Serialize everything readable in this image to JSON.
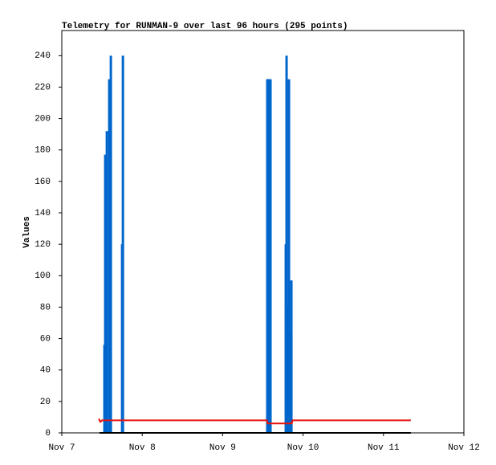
{
  "chart_data": {
    "type": "combo",
    "title": "Telemetry for RUNMAN-9 over last 96 hours (295 points)",
    "y_label": "Values",
    "xlim": [
      7,
      12
    ],
    "xticks": [
      {
        "value": 7,
        "label": "Nov 7"
      },
      {
        "value": 8,
        "label": "Nov 8"
      },
      {
        "value": 9,
        "label": "Nov 9"
      },
      {
        "value": 10,
        "label": "Nov 10"
      },
      {
        "value": 11,
        "label": "Nov 11"
      },
      {
        "value": 12,
        "label": "Nov 12"
      }
    ],
    "ylim": [
      0,
      256
    ],
    "yticks": [
      0,
      20,
      40,
      60,
      80,
      100,
      120,
      140,
      160,
      180,
      200,
      220,
      240
    ],
    "series": [
      {
        "type": "bar",
        "color": "#0066cc",
        "x": [
          7.53,
          7.54,
          7.56,
          7.59,
          7.61,
          7.75,
          7.76,
          9.555,
          9.565,
          9.575,
          9.585,
          9.595,
          9.785,
          9.795,
          9.805,
          9.825,
          9.835,
          9.855
        ],
        "values": [
          56,
          177,
          192,
          225,
          240,
          120,
          240,
          225,
          225,
          225,
          225,
          225,
          120,
          240,
          80,
          225,
          64,
          97
        ]
      },
      {
        "type": "line",
        "color": "#e8120c",
        "x": [
          7.46,
          7.48,
          7.5,
          9.55,
          9.56,
          9.86,
          9.87,
          11.34
        ],
        "values": [
          9,
          7,
          8,
          8,
          6,
          6,
          8,
          8
        ]
      },
      {
        "type": "line",
        "color": "#000000",
        "x": [
          7.47,
          11.34
        ],
        "values": [
          0,
          0
        ]
      }
    ]
  }
}
